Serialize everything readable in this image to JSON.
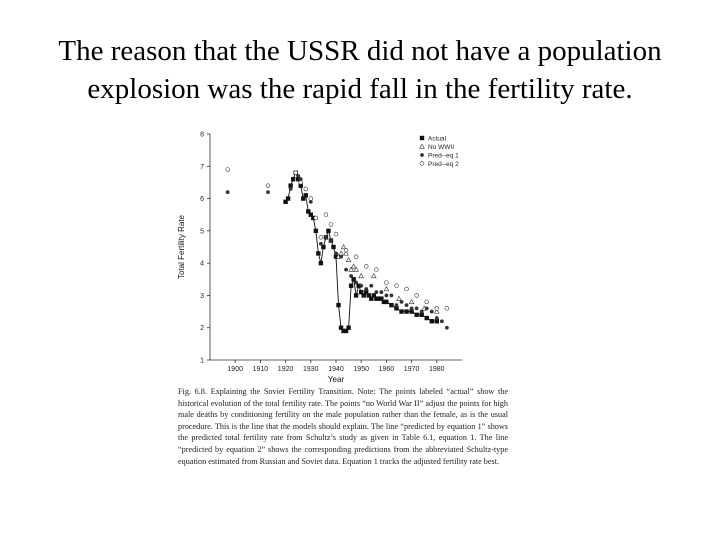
{
  "slide": {
    "title_line1": "The reason that the USSR did not have a population",
    "title_line2": "explosion was the rapid fall in the fertility rate."
  },
  "chart_data": {
    "type": "scatter",
    "xlabel": "Year",
    "ylabel": "Total Fertility Rate",
    "xlim": [
      1890,
      1990
    ],
    "ylim": [
      1,
      8
    ],
    "xticks": [
      1900,
      1910,
      1920,
      1930,
      1940,
      1950,
      1960,
      1970,
      1980
    ],
    "yticks": [
      1,
      2,
      3,
      4,
      5,
      6,
      7,
      8
    ],
    "legend_position": "top-right",
    "series": [
      {
        "name": "Actual",
        "marker": "square-filled",
        "x": [
          1920,
          1921,
          1922,
          1923,
          1924,
          1925,
          1926,
          1927,
          1928,
          1929,
          1930,
          1931,
          1932,
          1933,
          1934,
          1935,
          1936,
          1937,
          1938,
          1939,
          1940,
          1941,
          1942,
          1943,
          1944,
          1945,
          1946,
          1947,
          1948,
          1949,
          1950,
          1951,
          1952,
          1953,
          1954,
          1955,
          1956,
          1957,
          1958,
          1959,
          1960,
          1962,
          1964,
          1966,
          1968,
          1970,
          1972,
          1974,
          1976,
          1978,
          1980
        ],
        "y": [
          5.9,
          6.0,
          6.4,
          6.6,
          6.8,
          6.6,
          6.4,
          6.0,
          6.1,
          5.6,
          5.5,
          5.4,
          5.0,
          4.3,
          4.0,
          4.5,
          4.8,
          5.0,
          4.7,
          4.5,
          4.2,
          2.7,
          2.0,
          1.9,
          1.9,
          2.0,
          3.3,
          3.5,
          3.0,
          3.3,
          3.1,
          3.0,
          3.1,
          3.0,
          2.9,
          3.0,
          2.9,
          2.9,
          2.9,
          2.8,
          2.8,
          2.7,
          2.6,
          2.5,
          2.5,
          2.5,
          2.4,
          2.4,
          2.3,
          2.2,
          2.2
        ]
      },
      {
        "name": "No WWII",
        "marker": "triangle-open",
        "x": [
          1941,
          1942,
          1943,
          1944,
          1945,
          1946,
          1947,
          1948,
          1950,
          1955,
          1960,
          1965,
          1970,
          1975,
          1980
        ],
        "y": [
          4.2,
          4.3,
          4.5,
          4.3,
          4.1,
          3.8,
          3.9,
          3.8,
          3.6,
          3.6,
          3.2,
          2.9,
          2.8,
          2.6,
          2.5
        ]
      },
      {
        "name": "Pred--eq 1",
        "marker": "circle-filled",
        "x": [
          1897,
          1913,
          1922,
          1925,
          1926,
          1928,
          1930,
          1932,
          1934,
          1936,
          1938,
          1940,
          1942,
          1944,
          1946,
          1948,
          1950,
          1952,
          1954,
          1956,
          1958,
          1960,
          1962,
          1964,
          1966,
          1968,
          1970,
          1972,
          1974,
          1976,
          1978,
          1980,
          1982,
          1984
        ],
        "y": [
          6.2,
          6.2,
          6.3,
          6.7,
          6.6,
          6.3,
          5.9,
          5.4,
          4.6,
          4.8,
          4.7,
          4.3,
          4.2,
          3.8,
          3.6,
          3.4,
          3.3,
          3.2,
          3.3,
          3.1,
          3.1,
          3.0,
          3.0,
          2.7,
          2.8,
          2.7,
          2.6,
          2.6,
          2.5,
          2.6,
          2.5,
          2.3,
          2.2,
          2.0
        ]
      },
      {
        "name": "Pred--eq 2",
        "marker": "circle-open",
        "x": [
          1897,
          1913,
          1924,
          1926,
          1928,
          1930,
          1932,
          1934,
          1936,
          1938,
          1940,
          1944,
          1948,
          1952,
          1956,
          1960,
          1964,
          1968,
          1972,
          1976,
          1980,
          1984
        ],
        "y": [
          6.9,
          6.4,
          6.8,
          6.5,
          6.3,
          6.0,
          5.4,
          4.8,
          5.5,
          5.2,
          4.9,
          4.4,
          4.2,
          3.9,
          3.8,
          3.4,
          3.3,
          3.2,
          3.0,
          2.8,
          2.6,
          2.6
        ]
      }
    ]
  },
  "caption": {
    "text": "Fig. 6.8. Explaining the Soviet Fertility Transition. Note: The points labeled “actual” show the historical evolution of the total fertility rate. The points “no World War II” adjust the points for high male deaths by conditioning fertility on the male population rather than the female, as is the usual procedure. This is the line that the models should explain. The line “predicted by equation 1” shows the predicted total fertility rate from Schultz’s study as given in Table 6.1, equation 1. The line “predicted by equation 2” shows the corresponding predictions from the abbreviated Schultz-type equation estimated from Russian and Soviet data. Equation 1 tracks the adjusted fertility rate best."
  }
}
